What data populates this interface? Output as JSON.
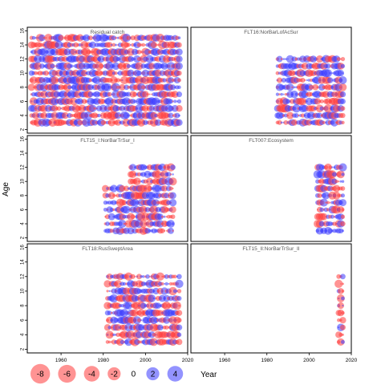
{
  "chart_data": {
    "type": "scatter",
    "title": "",
    "xlabel": "Year",
    "ylabel": "Age",
    "xlim": [
      1944,
      2020
    ],
    "ylim": [
      1.5,
      16.5
    ],
    "x_ticks": [
      1960,
      1980,
      2000,
      2020
    ],
    "y_ticks": [
      2,
      4,
      6,
      8,
      10,
      12,
      14,
      16
    ],
    "grid": false,
    "legend_position": "bottom-left",
    "colors": {
      "positive": "#3b3bff",
      "negative": "#ff3b3b"
    },
    "legend": {
      "title": "",
      "entries": [
        {
          "label": "-8",
          "value": -8
        },
        {
          "label": "-6",
          "value": -6
        },
        {
          "label": "-4",
          "value": -4
        },
        {
          "label": "-2",
          "value": -2
        },
        {
          "label": "0",
          "value": 0
        },
        {
          "label": "2",
          "value": 2
        },
        {
          "label": "4",
          "value": 4
        }
      ]
    },
    "panels": [
      {
        "title": "Residual catch",
        "year_range": [
          1946,
          2016
        ],
        "year_step": 1,
        "age_range": [
          3,
          15
        ],
        "seed": 11
      },
      {
        "title": "FLT16:NorBarLofAcSur",
        "year_range": [
          1985,
          2016
        ],
        "year_step": 1,
        "age_range": [
          3,
          12
        ],
        "seed": 23
      },
      {
        "title": "FLT15_I:NorBarTrSur_I",
        "year_range": [
          1981,
          2013
        ],
        "year_step": 1,
        "age_range": [
          3,
          12
        ],
        "age_range_before_1993": [
          3,
          9
        ],
        "seed": 37
      },
      {
        "title": "FLT007:Ecosystem",
        "year_range": [
          2004,
          2016
        ],
        "year_step": 1,
        "age_range": [
          3,
          12
        ],
        "seed": 41
      },
      {
        "title": "FLT18:RusSweptArea",
        "year_range": [
          1982,
          2016
        ],
        "year_step": 1,
        "age_range": [
          3,
          12
        ],
        "seed": 53
      },
      {
        "title": "FLT15_II:NorBarTrSur_II",
        "year_range": [
          2014,
          2016
        ],
        "year_step": 1,
        "age_range": [
          3,
          12
        ],
        "seed": 67
      }
    ]
  }
}
